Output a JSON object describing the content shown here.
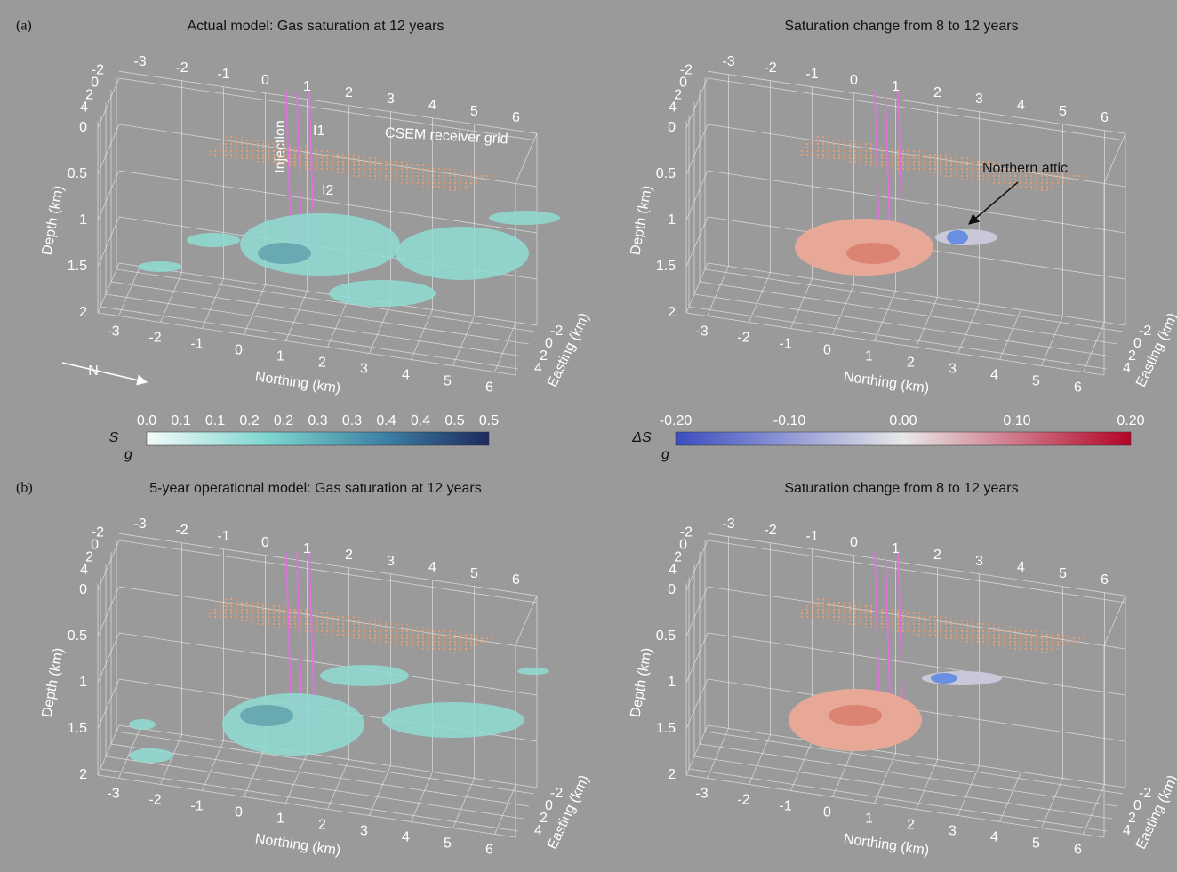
{
  "panels": [
    {
      "letter": "(a)",
      "title": "Actual model:  Gas saturation at 12 years",
      "annotations": [
        "Injection",
        "I1",
        "I2",
        "CSEM receiver grid"
      ]
    },
    {
      "title": "Saturation change from 8 to 12 years",
      "annotations": [
        "Northern attic"
      ]
    },
    {
      "letter": "(b)",
      "title": "5-year operational model:  Gas saturation at 12 years"
    },
    {
      "title": "Saturation change from 8 to 12 years"
    }
  ],
  "axes": {
    "depth_label": "Depth (km)",
    "northing_label": "Northing (km)",
    "easting_label": "Easting (km)",
    "depth_ticks": [
      "0",
      "0.5",
      "1",
      "1.5",
      "2"
    ],
    "northing_ticks": [
      "-3",
      "-2",
      "-1",
      "0",
      "1",
      "2",
      "3",
      "4",
      "5",
      "6"
    ],
    "easting_ticks": [
      "-2",
      "0",
      "2",
      "4"
    ]
  },
  "north_arrow": "N",
  "colorbars": [
    {
      "symbol": "S",
      "subscript": "g",
      "ticks": [
        "0.0",
        "0.1",
        "0.1",
        "0.2",
        "0.2",
        "0.3",
        "0.3",
        "0.4",
        "0.4",
        "0.5",
        "0.5"
      ]
    },
    {
      "symbol": "ΔS",
      "subscript": "g",
      "ticks": [
        "-0.20",
        "-0.10",
        "0.00",
        "0.10",
        "0.20"
      ]
    }
  ]
}
